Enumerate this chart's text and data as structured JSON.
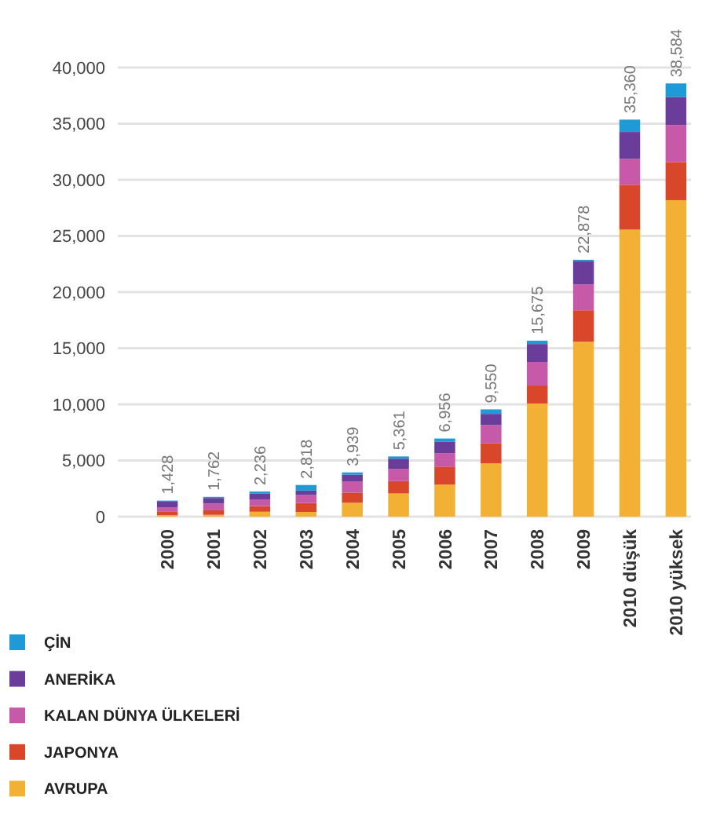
{
  "chart_data": {
    "type": "bar",
    "stacked": true,
    "categories": [
      "2000",
      "2001",
      "2002",
      "2003",
      "2004",
      "2005",
      "2006",
      "2007",
      "2008",
      "2009",
      "2010 düşük",
      "2010 yüksek"
    ],
    "series": [
      {
        "name": "AVRUPA",
        "color": "#f2b134",
        "values": [
          128,
          162,
          436,
          418,
          1239,
          2061,
          2856,
          4750,
          10075,
          15578,
          25560,
          28184
        ]
      },
      {
        "name": "JAPONYA",
        "color": "#d9472b",
        "values": [
          300,
          400,
          500,
          800,
          900,
          1100,
          1600,
          1800,
          1600,
          2800,
          4000,
          3400
        ]
      },
      {
        "name": "KALAN DÜNYA ÜLKELERİ",
        "color": "#c75aa8",
        "values": [
          400,
          600,
          600,
          700,
          1000,
          1100,
          1200,
          1600,
          2100,
          2300,
          2300,
          3300
        ]
      },
      {
        "name": "ANERİKA",
        "color": "#6a3d9a",
        "values": [
          500,
          500,
          500,
          400,
          600,
          900,
          1000,
          1000,
          1600,
          2100,
          2400,
          2500
        ]
      },
      {
        "name": "ÇİN",
        "color": "#1e9ad6",
        "values": [
          100,
          100,
          200,
          500,
          200,
          200,
          300,
          400,
          300,
          100,
          1100,
          1200
        ]
      }
    ],
    "totals": [
      "1,428",
      "1,762",
      "2,236",
      "2,818",
      "3,939",
      "5,361",
      "6,956",
      "9,550",
      "15,675",
      "22,878",
      "35,360",
      "38,584"
    ],
    "ylim": [
      0,
      40000
    ],
    "yticks": [
      {
        "value": 0,
        "label": "0"
      },
      {
        "value": 5000,
        "label": "5,000"
      },
      {
        "value": 10000,
        "label": "10,000"
      },
      {
        "value": 15000,
        "label": "15,000"
      },
      {
        "value": 20000,
        "label": "20,000"
      },
      {
        "value": 25000,
        "label": "25,000"
      },
      {
        "value": 30000,
        "label": "30,000"
      },
      {
        "value": 35000,
        "label": "35,000"
      },
      {
        "value": 40000,
        "label": "40,000"
      }
    ],
    "grid": "y",
    "legend": "bottom left"
  }
}
